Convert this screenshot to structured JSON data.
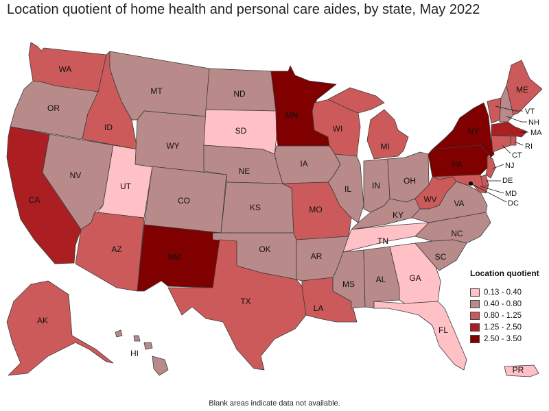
{
  "title": "Location quotient of home health and personal care aides, by state, May 2022",
  "footnote": "Blank areas indicate data not available.",
  "colors": {
    "c1": "#ffc0c6",
    "c2": "#b88a89",
    "c3": "#cd5a5a",
    "c4": "#ab1f23",
    "c5": "#800000"
  },
  "legend": {
    "title": "Location quotient",
    "items": [
      {
        "label": "0.13 - 0.40",
        "color": "#ffc0c6"
      },
      {
        "label": "0.40 - 0.80",
        "color": "#b88a89"
      },
      {
        "label": "0.80 - 1.25",
        "color": "#cd5a5a"
      },
      {
        "label": "1.25 - 2.50",
        "color": "#ab1f23"
      },
      {
        "label": "2.50 - 3.50",
        "color": "#800000"
      }
    ]
  },
  "states": {
    "WA": "WA",
    "OR": "OR",
    "CA": "CA",
    "ID": "ID",
    "NV": "NV",
    "UT": "UT",
    "AZ": "AZ",
    "MT": "MT",
    "WY": "WY",
    "CO": "CO",
    "NM": "NM",
    "ND": "ND",
    "SD": "SD",
    "NE": "NE",
    "KS": "KS",
    "OK": "OK",
    "TX": "TX",
    "MN": "MN",
    "IA": "IA",
    "MO": "MO",
    "AR": "AR",
    "LA": "LA",
    "WI": "WI",
    "IL": "IL",
    "MS": "MS",
    "MI": "MI",
    "IN": "IN",
    "KY": "KY",
    "TN": "TN",
    "AL": "AL",
    "GA": "GA",
    "FL": "FL",
    "OH": "OH",
    "WV": "WV",
    "VA": "VA",
    "NC": "NC",
    "SC": "SC",
    "PA": "PA",
    "NY": "NY",
    "ME": "ME",
    "VT": "VT",
    "NH": "NH",
    "MA": "MA",
    "RI": "RI",
    "CT": "CT",
    "NJ": "NJ",
    "DE": "DE",
    "MD": "MD",
    "DC": "DC",
    "AK": "AK",
    "HI": "HI",
    "PR": "PR"
  }
}
